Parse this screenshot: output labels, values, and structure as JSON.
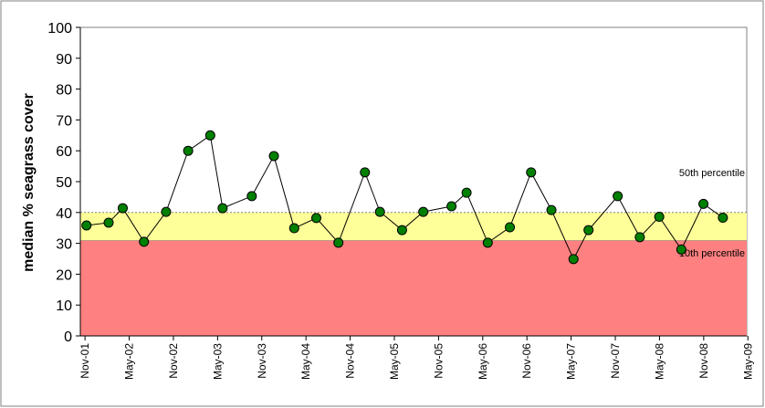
{
  "chart_data": {
    "type": "line",
    "y_label": "median % seagrass cover",
    "x": [
      2001.85,
      2002.1,
      2002.26,
      2002.5,
      2002.75,
      2003.0,
      2003.25,
      2003.39,
      2003.72,
      2003.97,
      2004.2,
      2004.45,
      2004.7,
      2005.0,
      2005.17,
      2005.42,
      2005.66,
      2005.98,
      2006.15,
      2006.39,
      2006.64,
      2006.88,
      2007.11,
      2007.36,
      2007.53,
      2007.86,
      2008.11,
      2008.33,
      2008.58,
      2008.83,
      2009.05
    ],
    "values": [
      35.8,
      36.7,
      41.4,
      30.5,
      40.2,
      60,
      65,
      41.4,
      45.3,
      58.3,
      34.9,
      38.2,
      30.2,
      53,
      40.2,
      34.3,
      40.2,
      42,
      46.4,
      30.2,
      35.2,
      53,
      40.8,
      24.9,
      34.3,
      45.3,
      32,
      38.6,
      28,
      42.8,
      38.3
    ],
    "color": "#008000",
    "xlim": [
      2001.78,
      2009.32
    ],
    "xticks": [
      {
        "value": 2001.833,
        "label": "Nov-01"
      },
      {
        "value": 2002.333,
        "label": "May-02"
      },
      {
        "value": 2002.833,
        "label": "Nov-02"
      },
      {
        "value": 2003.333,
        "label": "May-03"
      },
      {
        "value": 2003.833,
        "label": "Nov-03"
      },
      {
        "value": 2004.333,
        "label": "May-04"
      },
      {
        "value": 2004.833,
        "label": "Nov-04"
      },
      {
        "value": 2005.333,
        "label": "May-05"
      },
      {
        "value": 2005.833,
        "label": "Nov-05"
      },
      {
        "value": 2006.333,
        "label": "May-06"
      },
      {
        "value": 2006.833,
        "label": "Nov-06"
      },
      {
        "value": 2007.333,
        "label": "May-07"
      },
      {
        "value": 2007.833,
        "label": "Nov-07"
      },
      {
        "value": 2008.333,
        "label": "May-08"
      },
      {
        "value": 2008.833,
        "label": "Nov-08"
      },
      {
        "value": 2009.333,
        "label": "May-09"
      }
    ],
    "ylim": [
      0,
      100
    ],
    "yticks": [
      0,
      10,
      20,
      30,
      40,
      50,
      60,
      70,
      80,
      90,
      100
    ],
    "bands": [
      {
        "name": "10th percentile",
        "value": 31,
        "color": "#ff8080"
      },
      {
        "name": "50th percentile",
        "value": 40,
        "color": "#ffff99"
      }
    ]
  }
}
